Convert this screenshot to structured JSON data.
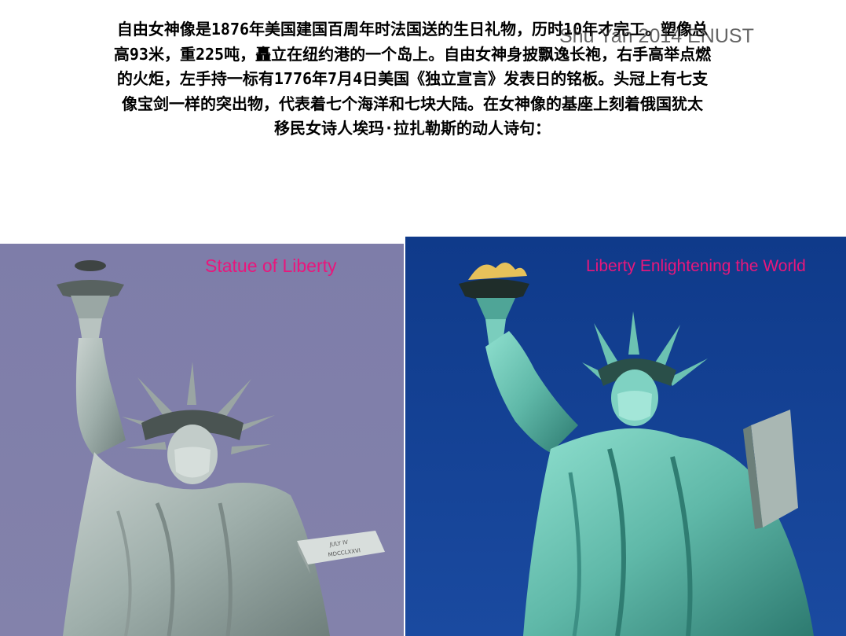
{
  "paragraph": {
    "lines": [
      "自由女神像是1876年美国建国百周年时法国送的生日礼物，历时10年才完工。塑像总",
      "高93米，重225吨，矗立在纽约港的一个岛上。自由女神身披飘逸长袍，右手高举点燃",
      "的火炬，左手持一标有1776年7月4日美国《独立宣言》发表日的铭板。头冠上有七支",
      "像宝剑一样的突出物，代表着七个海洋和七块大陆。在女神像的基座上刻着俄国犹太",
      "移民女诗人埃玛·拉扎勒斯的动人诗句："
    ]
  },
  "watermark": "Shu Yan 2014 ENUST",
  "photos": {
    "left": {
      "caption": "Statue of Liberty",
      "background": "#7d7ca8"
    },
    "right": {
      "caption": "Liberty Enlightening the World",
      "background": "#123e8e"
    }
  },
  "colors": {
    "caption": "#e8177c",
    "text": "#000000"
  }
}
